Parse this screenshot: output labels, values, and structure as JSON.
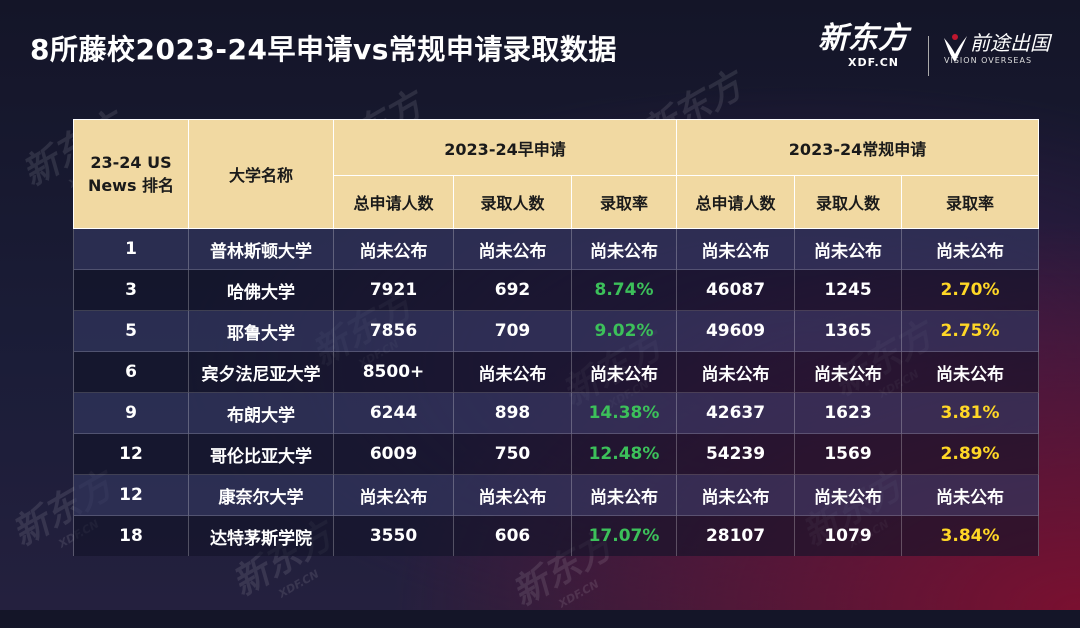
{
  "title": "8所藤校2023-24早申请vs常规申请录取数据",
  "logos": {
    "xdf_zh": "新东方",
    "xdf_en": "XDF.CN",
    "vision_zh": "前途出国",
    "vision_en": "VISION OVERSEAS"
  },
  "table": {
    "header": {
      "rank": "23-24 US News 排名",
      "school": "大学名称",
      "early_group": "2023-24早申请",
      "regular_group": "2023-24常规申请",
      "sub": [
        "总申请人数",
        "录取人数",
        "录取率",
        "总申请人数",
        "录取人数",
        "录取率"
      ]
    },
    "rows": [
      {
        "rank": "1",
        "school": "普林斯顿大学",
        "ea_apps": "尚未公布",
        "ea_admit": "尚未公布",
        "ea_rate": "尚未公布",
        "rd_apps": "尚未公布",
        "rd_admit": "尚未公布",
        "rd_rate": "尚未公布"
      },
      {
        "rank": "3",
        "school": "哈佛大学",
        "ea_apps": "7921",
        "ea_admit": "692",
        "ea_rate": "8.74%",
        "rd_apps": "46087",
        "rd_admit": "1245",
        "rd_rate": "2.70%"
      },
      {
        "rank": "5",
        "school": "耶鲁大学",
        "ea_apps": "7856",
        "ea_admit": "709",
        "ea_rate": "9.02%",
        "rd_apps": "49609",
        "rd_admit": "1365",
        "rd_rate": "2.75%"
      },
      {
        "rank": "6",
        "school": "宾夕法尼亚大学",
        "ea_apps": "8500+",
        "ea_admit": "尚未公布",
        "ea_rate": "尚未公布",
        "rd_apps": "尚未公布",
        "rd_admit": "尚未公布",
        "rd_rate": "尚未公布"
      },
      {
        "rank": "9",
        "school": "布朗大学",
        "ea_apps": "6244",
        "ea_admit": "898",
        "ea_rate": "14.38%",
        "rd_apps": "42637",
        "rd_admit": "1623",
        "rd_rate": "3.81%"
      },
      {
        "rank": "12",
        "school": "哥伦比亚大学",
        "ea_apps": "6009",
        "ea_admit": "750",
        "ea_rate": "12.48%",
        "rd_apps": "54239",
        "rd_admit": "1569",
        "rd_rate": "2.89%"
      },
      {
        "rank": "12",
        "school": "康奈尔大学",
        "ea_apps": "尚未公布",
        "ea_admit": "尚未公布",
        "ea_rate": "尚未公布",
        "rd_apps": "尚未公布",
        "rd_admit": "尚未公布",
        "rd_rate": "尚未公布"
      },
      {
        "rank": "18",
        "school": "达特茅斯学院",
        "ea_apps": "3550",
        "ea_admit": "606",
        "ea_rate": "17.07%",
        "rd_apps": "28107",
        "rd_admit": "1079",
        "rd_rate": "3.84%"
      }
    ]
  },
  "colors": {
    "header_bg": "#f1d9a2",
    "early_rate": "#3cc05a",
    "regular_rate": "#ffd726"
  }
}
